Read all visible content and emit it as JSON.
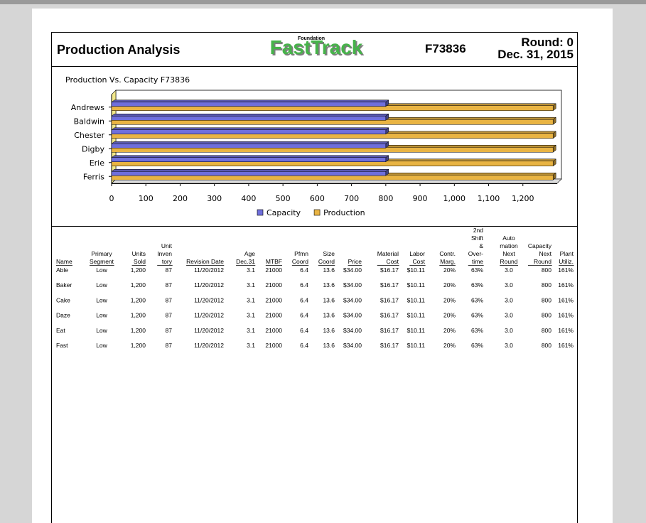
{
  "header": {
    "title": "Production Analysis",
    "logo_small": "Foundation",
    "logo": "FastTrack",
    "company": "F73836",
    "round": "Round: 0",
    "date": "Dec. 31, 2015"
  },
  "chart_data": {
    "type": "bar",
    "orientation": "horizontal",
    "title": "Production Vs. Capacity F73836",
    "categories": [
      "Andrews",
      "Baldwin",
      "Chester",
      "Digby",
      "Erie",
      "Ferris"
    ],
    "series": [
      {
        "name": "Capacity",
        "color": "#6f6fdc",
        "values": [
          800,
          800,
          800,
          800,
          800,
          800
        ]
      },
      {
        "name": "Production",
        "color": "#e9b443",
        "values": [
          1288,
          1288,
          1288,
          1288,
          1288,
          1288
        ]
      }
    ],
    "xlim": [
      0,
      1300
    ],
    "xticks": [
      0,
      100,
      200,
      300,
      400,
      500,
      600,
      700,
      800,
      900,
      {
        "value": 1000,
        "label": "1,000"
      },
      {
        "value": 1100,
        "label": "1,100"
      },
      {
        "value": 1200,
        "label": "1,200"
      }
    ],
    "legend": "bottom"
  },
  "table": {
    "columns": [
      [
        "Name"
      ],
      [
        "Primary",
        "Segment"
      ],
      [
        "Units",
        "Sold"
      ],
      [
        "Unit",
        "Inven",
        "tory"
      ],
      [
        "Revision Date"
      ],
      [
        "Age",
        "Dec.31"
      ],
      [
        "MTBF"
      ],
      [
        "Pfmn",
        "Coord"
      ],
      [
        "Size",
        "Coord"
      ],
      [
        "Price"
      ],
      [
        "Material",
        "Cost"
      ],
      [
        "Labor",
        "Cost"
      ],
      [
        "Contr.",
        "Marg."
      ],
      [
        "2nd",
        "Shift",
        "&",
        "Over-",
        "time"
      ],
      [
        "Auto",
        "mation",
        "Next",
        "Round"
      ],
      [
        "Capacity",
        "Next",
        "Round"
      ],
      [
        "Plant",
        "Utiliz."
      ]
    ],
    "rows": [
      [
        "Able",
        "Low",
        "1,200",
        "87",
        "11/20/2012",
        "3.1",
        "21000",
        "6.4",
        "13.6",
        "$34.00",
        "$16.17",
        "$10.11",
        "20%",
        "63%",
        "3.0",
        "800",
        "161%"
      ],
      [
        "Baker",
        "Low",
        "1,200",
        "87",
        "11/20/2012",
        "3.1",
        "21000",
        "6.4",
        "13.6",
        "$34.00",
        "$16.17",
        "$10.11",
        "20%",
        "63%",
        "3.0",
        "800",
        "161%"
      ],
      [
        "Cake",
        "Low",
        "1,200",
        "87",
        "11/20/2012",
        "3.1",
        "21000",
        "6.4",
        "13.6",
        "$34.00",
        "$16.17",
        "$10.11",
        "20%",
        "63%",
        "3.0",
        "800",
        "161%"
      ],
      [
        "Daze",
        "Low",
        "1,200",
        "87",
        "11/20/2012",
        "3.1",
        "21000",
        "6.4",
        "13.6",
        "$34.00",
        "$16.17",
        "$10.11",
        "20%",
        "63%",
        "3.0",
        "800",
        "161%"
      ],
      [
        "Eat",
        "Low",
        "1,200",
        "87",
        "11/20/2012",
        "3.1",
        "21000",
        "6.4",
        "13.6",
        "$34.00",
        "$16.17",
        "$10.11",
        "20%",
        "63%",
        "3.0",
        "800",
        "161%"
      ],
      [
        "Fast",
        "Low",
        "1,200",
        "87",
        "11/20/2012",
        "3.1",
        "21000",
        "6.4",
        "13.6",
        "$34.00",
        "$16.17",
        "$10.11",
        "20%",
        "63%",
        "3.0",
        "800",
        "161%"
      ]
    ]
  }
}
